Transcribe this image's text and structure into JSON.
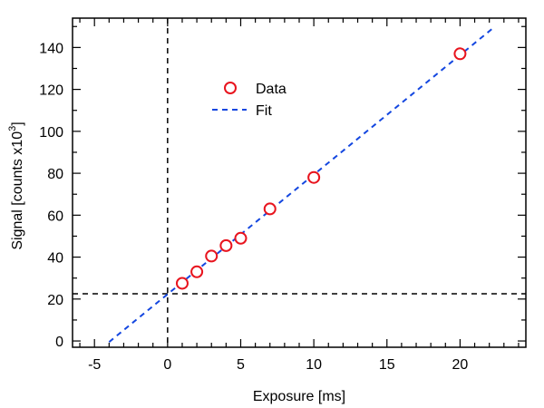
{
  "chart_data": {
    "type": "scatter",
    "xlabel": "Exposure [ms]",
    "ylabel": "Signal [counts x10",
    "ylabel_superscript": "3",
    "ylabel_close": "]",
    "xlim": [
      -6.5,
      24.5
    ],
    "ylim": [
      -3,
      154
    ],
    "xticks": [
      -5,
      0,
      5,
      10,
      15,
      20
    ],
    "xtick_labels": [
      "-5",
      "0",
      "5",
      "10",
      "15",
      "20"
    ],
    "yticks": [
      0,
      20,
      40,
      60,
      80,
      100,
      120,
      140
    ],
    "ytick_labels": [
      "0",
      "20",
      "40",
      "60",
      "80",
      "100",
      "120",
      "140"
    ],
    "grid": false,
    "legend_position": "upper-center",
    "reference_lines": {
      "vertical_x": 0,
      "horizontal_y": 22.5
    },
    "series": [
      {
        "name": "Data",
        "kind": "markers",
        "marker": "open-circle",
        "color": "#e8141e",
        "x": [
          1,
          2,
          3,
          4,
          5,
          7,
          10,
          20
        ],
        "y": [
          27.5,
          33,
          40.5,
          45.5,
          49,
          63,
          78,
          137
        ]
      },
      {
        "name": "Fit",
        "kind": "dashed-line",
        "color": "#1447e0",
        "x": [
          -4,
          22.3
        ],
        "y": [
          -0.5,
          149.5
        ]
      }
    ]
  }
}
